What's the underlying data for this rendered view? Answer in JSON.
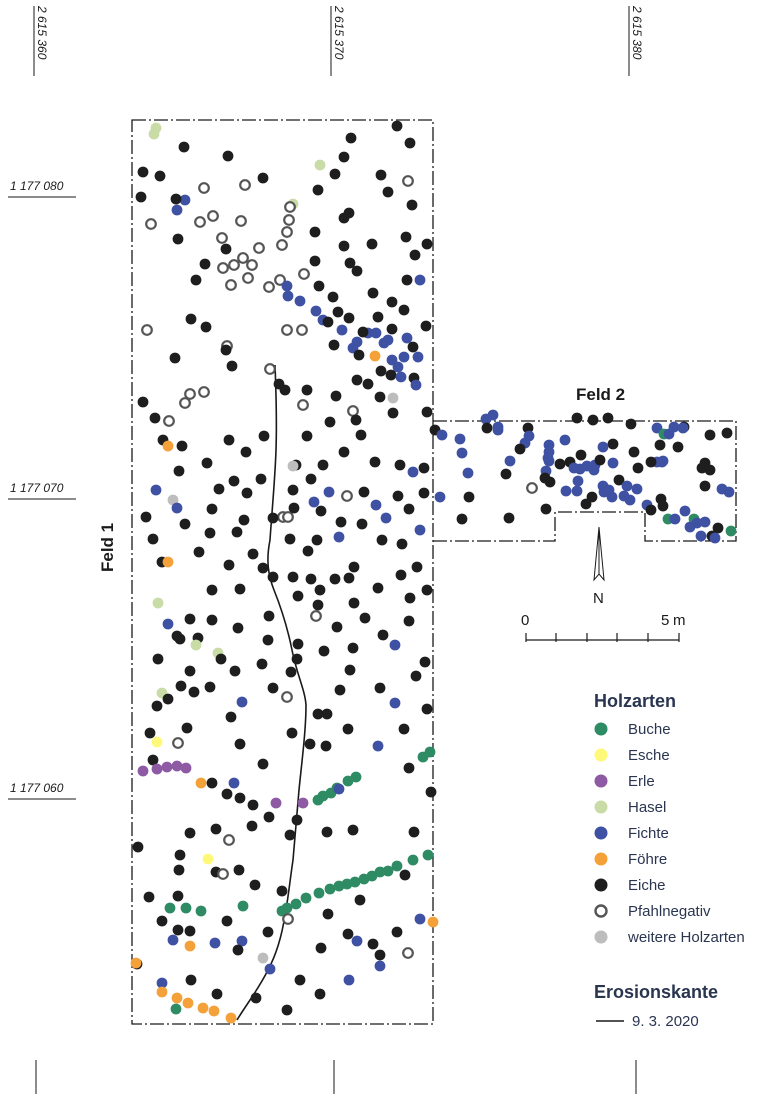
{
  "coords": {
    "east": [
      "2 615 360",
      "2 615 370",
      "2 615 380"
    ],
    "north": [
      "1 177 080",
      "1 177 070",
      "1 177 060"
    ]
  },
  "fields": {
    "feld1": "Feld 1",
    "feld2": "Feld 2"
  },
  "north_arrow": "N",
  "scale": {
    "start": "0",
    "end": "5",
    "unit": "m"
  },
  "legend": {
    "title": "Holzarten",
    "items": [
      {
        "label": "Buche",
        "color": "#2e8b63",
        "style": "filled",
        "icon": "buche-dot-icon"
      },
      {
        "label": "Esche",
        "color": "#fff97a",
        "style": "filled",
        "icon": "esche-dot-icon"
      },
      {
        "label": "Erle",
        "color": "#8e5aa3",
        "style": "filled",
        "icon": "erle-dot-icon"
      },
      {
        "label": "Hasel",
        "color": "#c9dca8",
        "style": "filled",
        "icon": "hasel-dot-icon"
      },
      {
        "label": "Fichte",
        "color": "#3f51a3",
        "style": "filled",
        "icon": "fichte-dot-icon"
      },
      {
        "label": "Föhre",
        "color": "#f4a13a",
        "style": "filled",
        "icon": "foehre-dot-icon"
      },
      {
        "label": "Eiche",
        "color": "#1e1e1e",
        "style": "filled",
        "icon": "eiche-dot-icon"
      },
      {
        "label": "Pfahlnegativ",
        "color": "#555555",
        "style": "ring",
        "icon": "pfahlnegativ-ring-icon"
      },
      {
        "label": "weitere Holzarten",
        "color": "#bdbdbd",
        "style": "filled",
        "icon": "weitere-dot-icon"
      }
    ],
    "erosion_title": "Erosionskante",
    "erosion_date": "9. 3. 2020"
  }
}
